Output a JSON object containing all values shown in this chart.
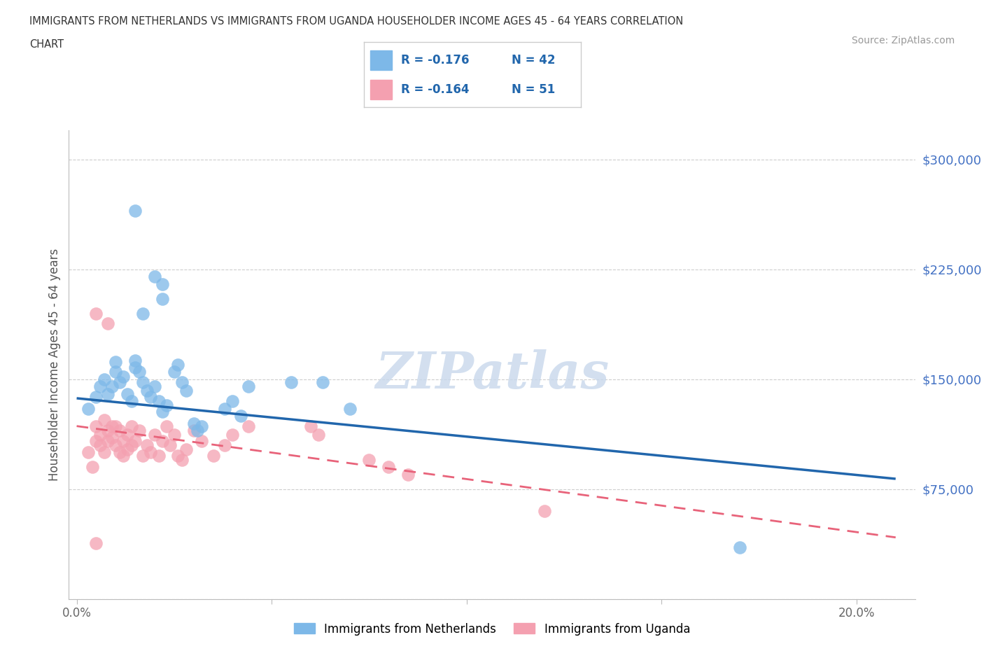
{
  "title_line1": "IMMIGRANTS FROM NETHERLANDS VS IMMIGRANTS FROM UGANDA HOUSEHOLDER INCOME AGES 45 - 64 YEARS CORRELATION",
  "title_line2": "CHART",
  "source": "Source: ZipAtlas.com",
  "ylabel": "Householder Income Ages 45 - 64 years",
  "xlim": [
    -0.002,
    0.215
  ],
  "ylim": [
    0,
    320000
  ],
  "xticks": [
    0.0,
    0.05,
    0.1,
    0.15,
    0.2
  ],
  "xticklabels": [
    "0.0%",
    "",
    "",
    "",
    "20.0%"
  ],
  "yticks": [
    0,
    75000,
    150000,
    225000,
    300000
  ],
  "yticklabels": [
    "",
    "$75,000",
    "$150,000",
    "$225,000",
    "$300,000"
  ],
  "legend_labels": [
    "Immigrants from Netherlands",
    "Immigrants from Uganda"
  ],
  "nl_R": "R = -0.176",
  "nl_N": "N = 42",
  "ug_R": "R = -0.164",
  "ug_N": "N = 51",
  "netherlands_color": "#7db8e8",
  "uganda_color": "#f4a0b0",
  "nl_line_color": "#2166ac",
  "ug_line_color": "#e8637a",
  "netherlands_scatter": [
    [
      0.003,
      130000
    ],
    [
      0.005,
      138000
    ],
    [
      0.006,
      145000
    ],
    [
      0.007,
      150000
    ],
    [
      0.008,
      140000
    ],
    [
      0.009,
      145000
    ],
    [
      0.01,
      155000
    ],
    [
      0.01,
      162000
    ],
    [
      0.011,
      148000
    ],
    [
      0.012,
      152000
    ],
    [
      0.013,
      140000
    ],
    [
      0.014,
      135000
    ],
    [
      0.015,
      158000
    ],
    [
      0.015,
      163000
    ],
    [
      0.016,
      155000
    ],
    [
      0.017,
      148000
    ],
    [
      0.018,
      142000
    ],
    [
      0.019,
      138000
    ],
    [
      0.02,
      145000
    ],
    [
      0.021,
      135000
    ],
    [
      0.022,
      128000
    ],
    [
      0.023,
      132000
    ],
    [
      0.025,
      155000
    ],
    [
      0.026,
      160000
    ],
    [
      0.027,
      148000
    ],
    [
      0.028,
      142000
    ],
    [
      0.03,
      120000
    ],
    [
      0.031,
      115000
    ],
    [
      0.032,
      118000
    ],
    [
      0.038,
      130000
    ],
    [
      0.04,
      135000
    ],
    [
      0.042,
      125000
    ],
    [
      0.044,
      145000
    ],
    [
      0.055,
      148000
    ],
    [
      0.063,
      148000
    ],
    [
      0.07,
      130000
    ],
    [
      0.015,
      265000
    ],
    [
      0.02,
      220000
    ],
    [
      0.022,
      215000
    ],
    [
      0.022,
      205000
    ],
    [
      0.017,
      195000
    ],
    [
      0.17,
      35000
    ]
  ],
  "uganda_scatter": [
    [
      0.003,
      100000
    ],
    [
      0.004,
      90000
    ],
    [
      0.005,
      108000
    ],
    [
      0.005,
      118000
    ],
    [
      0.006,
      105000
    ],
    [
      0.006,
      112000
    ],
    [
      0.007,
      122000
    ],
    [
      0.007,
      100000
    ],
    [
      0.008,
      115000
    ],
    [
      0.008,
      108000
    ],
    [
      0.009,
      118000
    ],
    [
      0.009,
      110000
    ],
    [
      0.01,
      118000
    ],
    [
      0.01,
      105000
    ],
    [
      0.011,
      115000
    ],
    [
      0.011,
      100000
    ],
    [
      0.012,
      108000
    ],
    [
      0.012,
      98000
    ],
    [
      0.013,
      112000
    ],
    [
      0.013,
      102000
    ],
    [
      0.014,
      118000
    ],
    [
      0.014,
      105000
    ],
    [
      0.015,
      108000
    ],
    [
      0.016,
      115000
    ],
    [
      0.017,
      98000
    ],
    [
      0.018,
      105000
    ],
    [
      0.019,
      100000
    ],
    [
      0.02,
      112000
    ],
    [
      0.021,
      98000
    ],
    [
      0.022,
      108000
    ],
    [
      0.023,
      118000
    ],
    [
      0.024,
      105000
    ],
    [
      0.025,
      112000
    ],
    [
      0.026,
      98000
    ],
    [
      0.027,
      95000
    ],
    [
      0.028,
      102000
    ],
    [
      0.03,
      115000
    ],
    [
      0.032,
      108000
    ],
    [
      0.035,
      98000
    ],
    [
      0.038,
      105000
    ],
    [
      0.04,
      112000
    ],
    [
      0.044,
      118000
    ],
    [
      0.005,
      195000
    ],
    [
      0.008,
      188000
    ],
    [
      0.06,
      118000
    ],
    [
      0.062,
      112000
    ],
    [
      0.075,
      95000
    ],
    [
      0.08,
      90000
    ],
    [
      0.085,
      85000
    ],
    [
      0.12,
      60000
    ],
    [
      0.005,
      38000
    ]
  ],
  "netherlands_trend": [
    0.0,
    137000,
    0.21,
    82000
  ],
  "uganda_trend": [
    0.0,
    118000,
    0.21,
    42000
  ],
  "watermark": "ZIPatlas",
  "background_color": "#ffffff",
  "grid_color": "#c8c8c8"
}
